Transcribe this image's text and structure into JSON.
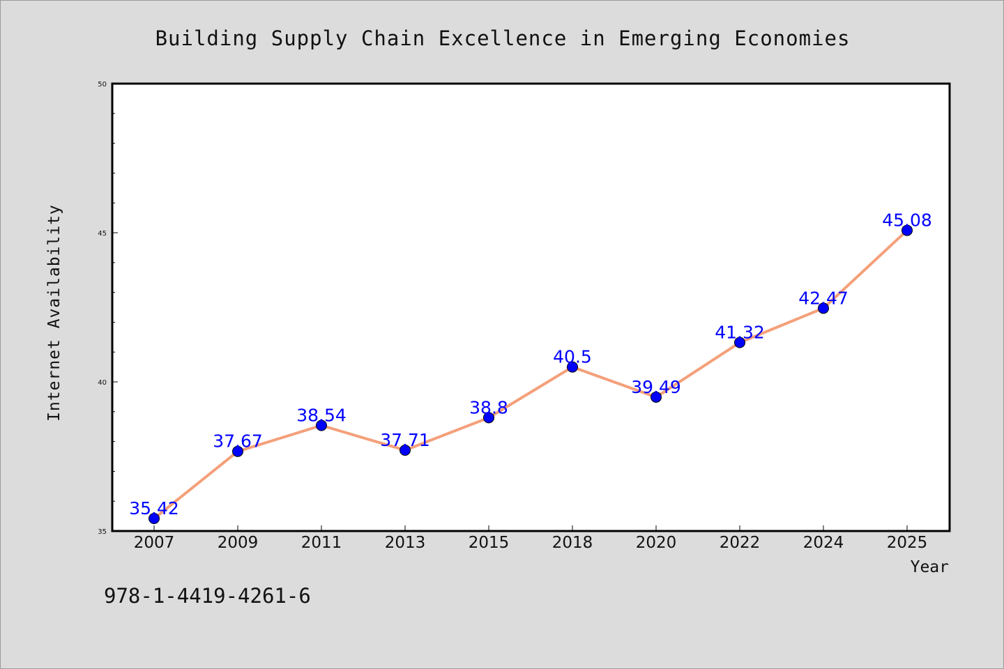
{
  "chart_data": {
    "type": "line",
    "title": "Building Supply Chain Excellence in Emerging Economies",
    "xlabel": "Year",
    "ylabel": "Internet Availability",
    "categories": [
      "2007",
      "2009",
      "2011",
      "2013",
      "2015",
      "2018",
      "2020",
      "2022",
      "2024",
      "2025"
    ],
    "series": [
      {
        "values": [
          35.42,
          37.67,
          38.54,
          37.71,
          38.8,
          40.5,
          39.49,
          41.32,
          42.47,
          45.08
        ]
      }
    ],
    "data_labels": [
      "35.42",
      "37.67",
      "38.54",
      "37.71",
      "38.8",
      "40.5",
      "39.49",
      "41.32",
      "42.47",
      "45.08"
    ],
    "ylim": [
      35,
      50
    ],
    "yticks": [
      35,
      40,
      45,
      50
    ],
    "grid": false,
    "legend": "none"
  },
  "annotation": {
    "isbn": "978-1-4419-4261-6"
  },
  "colors": {
    "background": "#dcdcdc",
    "plot_area": "#ffffff",
    "line": "#f4a07a",
    "marker": "#0000ff",
    "data_label": "#0000ff"
  }
}
